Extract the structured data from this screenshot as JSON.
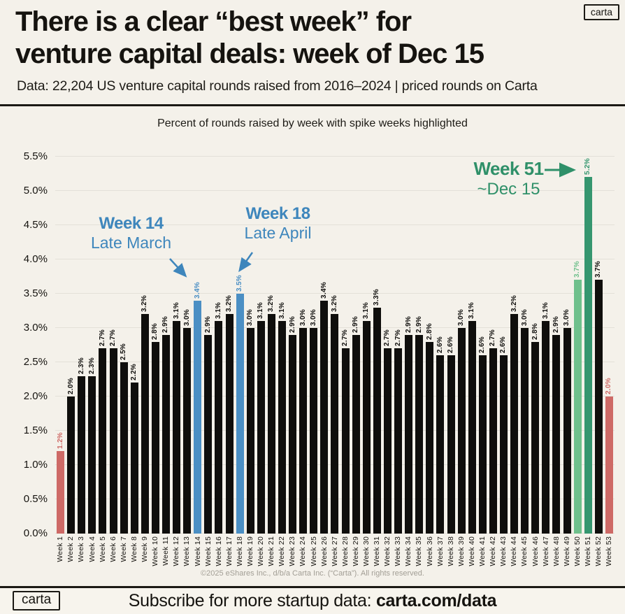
{
  "header": {
    "logo": "carta",
    "title_line1": "There is a clear “best week” for",
    "title_line2": "venture capital deals: week of Dec 15",
    "subtitle": "Data: 22,204 US venture capital rounds raised from 2016–2024 | priced rounds on Carta"
  },
  "chart_data": {
    "type": "bar",
    "title": "Percent of rounds raised by week with spike weeks highlighted",
    "xlabel": "",
    "ylabel": "",
    "ylim": [
      0,
      5.5
    ],
    "grid": "horizontal",
    "ytick_labels": [
      "0.0%",
      "0.5%",
      "1.0%",
      "1.5%",
      "2.0%",
      "2.5%",
      "3.0%",
      "3.5%",
      "4.0%",
      "4.5%",
      "5.0%",
      "5.5%"
    ],
    "categories": [
      "Week 1",
      "Week 2",
      "Week 3",
      "Week 4",
      "Week 5",
      "Week 6",
      "Week 7",
      "Week 8",
      "Week 9",
      "Week 10",
      "Week 11",
      "Week 12",
      "Week 13",
      "Week 14",
      "Week 15",
      "Week 16",
      "Week 17",
      "Week 18",
      "Week 19",
      "Week 20",
      "Week 21",
      "Week 22",
      "Week 23",
      "Week 24",
      "Week 25",
      "Week 26",
      "Week 27",
      "Week 28",
      "Week 29",
      "Week 30",
      "Week 31",
      "Week 32",
      "Week 33",
      "Week 34",
      "Week 35",
      "Week 36",
      "Week 37",
      "Week 38",
      "Week 39",
      "Week 40",
      "Week 41",
      "Week 42",
      "Week 43",
      "Week 44",
      "Week 45",
      "Week 46",
      "Week 47",
      "Week 48",
      "Week 49",
      "Week 50",
      "Week 51",
      "Week 52",
      "Week 53"
    ],
    "values": [
      1.2,
      2.0,
      2.3,
      2.3,
      2.7,
      2.7,
      2.5,
      2.2,
      3.2,
      2.8,
      2.9,
      3.1,
      3.0,
      3.4,
      2.9,
      3.1,
      3.2,
      3.5,
      3.0,
      3.1,
      3.2,
      3.1,
      2.9,
      3.0,
      3.0,
      3.4,
      3.2,
      2.7,
      2.9,
      3.1,
      3.3,
      2.7,
      2.7,
      2.9,
      2.9,
      2.8,
      2.6,
      2.6,
      3.0,
      3.1,
      2.6,
      2.7,
      2.6,
      3.2,
      3.0,
      2.8,
      3.1,
      2.9,
      3.0,
      3.7,
      5.2,
      3.7,
      2.0
    ],
    "bar_color_keys": [
      "red",
      "black",
      "black",
      "black",
      "black",
      "black",
      "black",
      "black",
      "black",
      "black",
      "black",
      "black",
      "black",
      "blue",
      "black",
      "black",
      "black",
      "blue",
      "black",
      "black",
      "black",
      "black",
      "black",
      "black",
      "black",
      "black",
      "black",
      "black",
      "black",
      "black",
      "black",
      "black",
      "black",
      "black",
      "black",
      "black",
      "black",
      "black",
      "black",
      "black",
      "black",
      "black",
      "black",
      "black",
      "black",
      "black",
      "black",
      "black",
      "black",
      "lightgreen",
      "green",
      "black",
      "red"
    ],
    "palette": {
      "black": "#0f0e0c",
      "red": "#ce6a66",
      "blue": "#4b8fc4",
      "lightgreen": "#6fc08c",
      "green": "#35966f"
    }
  },
  "annotations": {
    "week14": {
      "title": "Week 14",
      "sub": "Late March"
    },
    "week18": {
      "title": "Week 18",
      "sub": "Late April"
    },
    "week51": {
      "title": "Week 51",
      "sub": "~Dec 15"
    }
  },
  "footer": {
    "copyright": "©2025 eShares Inc., d/b/a Carta Inc. (“Carta”). All rights reserved.",
    "logo": "carta",
    "cta_prefix": "Subscribe for more startup data: ",
    "cta_bold": "carta.com/data"
  }
}
